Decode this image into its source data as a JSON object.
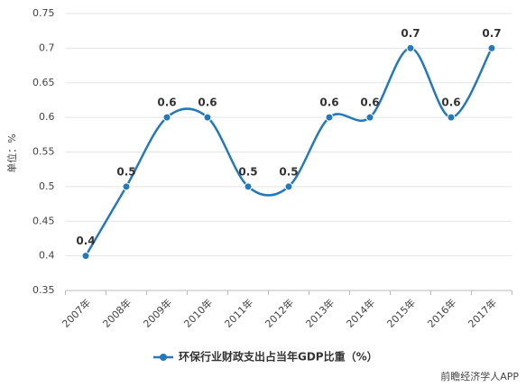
{
  "chart_data": {
    "type": "line",
    "y_label": "单位：%",
    "categories": [
      "2007年",
      "2008年",
      "2009年",
      "2010年",
      "2011年",
      "2012年",
      "2013年",
      "2014年",
      "2015年",
      "2016年",
      "2017年"
    ],
    "series": [
      {
        "name": "环保行业财政支出占当年GDP比重（%）",
        "color": "#2679b8",
        "values": [
          0.4,
          0.5,
          0.6,
          0.6,
          0.5,
          0.5,
          0.6,
          0.6,
          0.7,
          0.6,
          0.7
        ]
      }
    ],
    "ylim": [
      0.35,
      0.75
    ],
    "yticks": [
      0.35,
      0.4,
      0.45,
      0.5,
      0.55,
      0.6,
      0.65,
      0.7,
      0.75
    ],
    "grid": true,
    "smooth": true,
    "legend": "bottom",
    "watermark": "前瞻经济学人APP"
  }
}
